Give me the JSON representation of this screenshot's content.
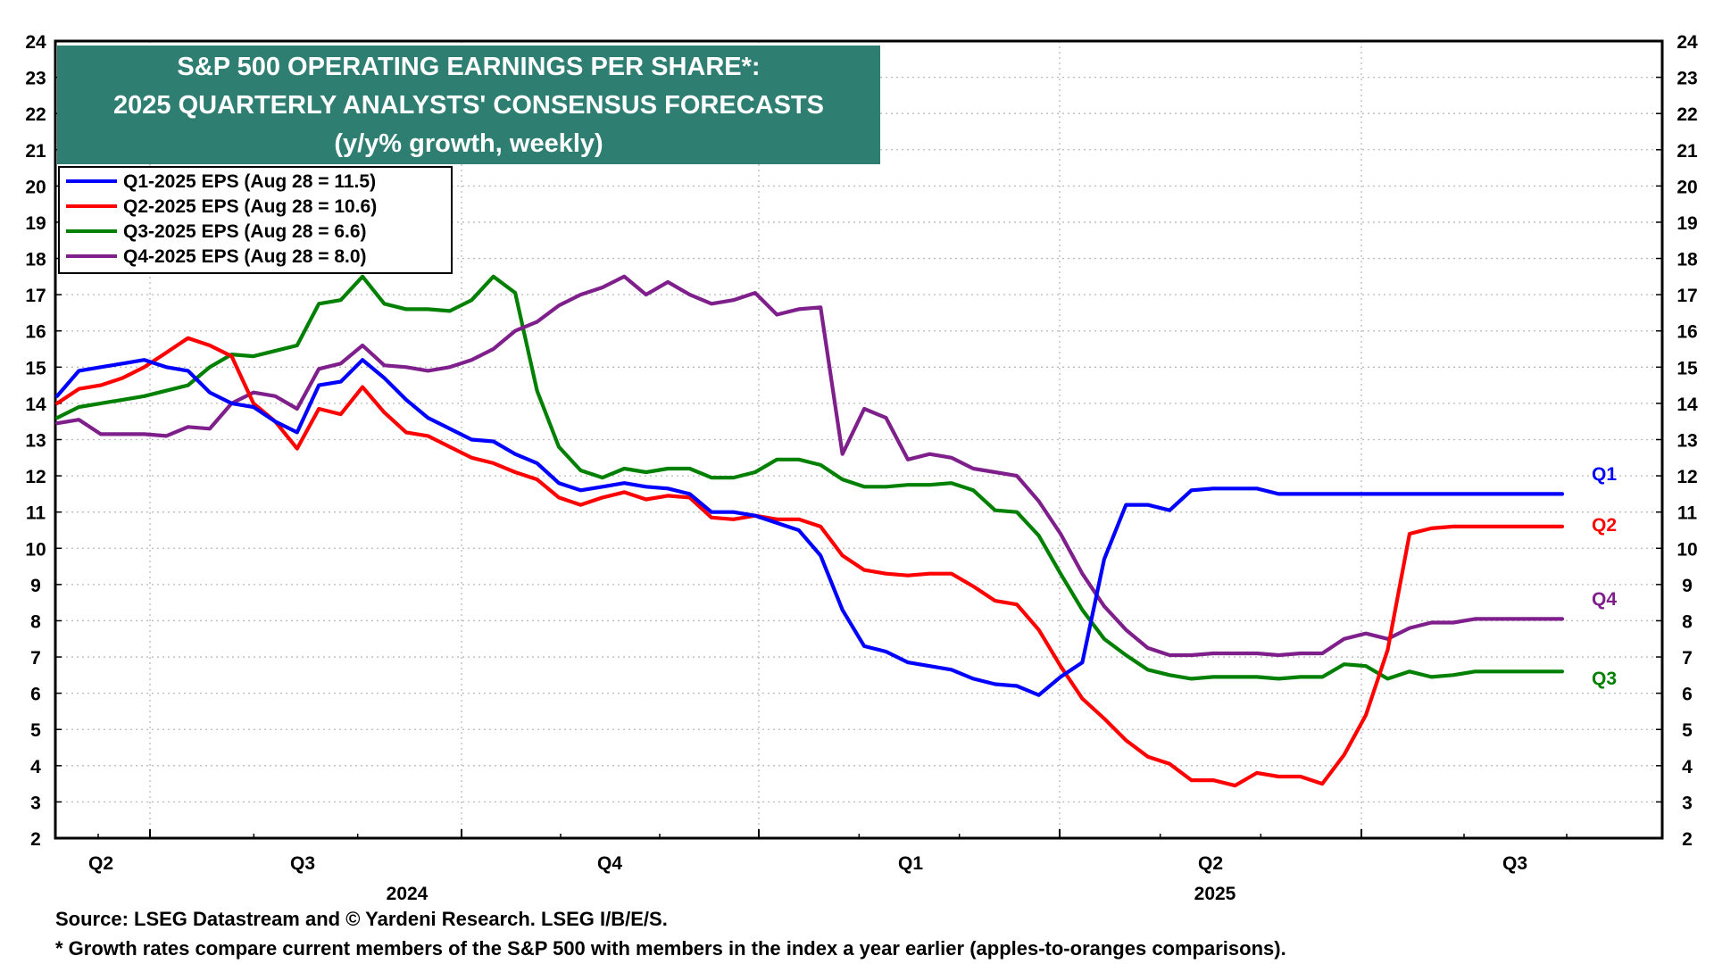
{
  "chart_data": {
    "type": "line",
    "title_lines": [
      "S&P 500 OPERATING EARNINGS PER SHARE*:",
      "2025 QUARTERLY ANALYSTS' CONSENSUS FORECASTS",
      "(y/y% growth, weekly)"
    ],
    "ylim": [
      2,
      24
    ],
    "y_ticks": [
      2,
      3,
      4,
      5,
      6,
      7,
      8,
      9,
      10,
      11,
      12,
      13,
      14,
      15,
      16,
      17,
      18,
      19,
      20,
      21,
      22,
      23,
      24
    ],
    "x_quarter_labels": [
      "Q2",
      "Q3",
      "Q4",
      "Q1",
      "Q2",
      "Q3"
    ],
    "x_year_labels": [
      "2024",
      "2025"
    ],
    "grid": true,
    "legend_position": "top-left",
    "series": [
      {
        "name": "Q1-2025 EPS (Aug 28 = 11.5)",
        "end_label": "Q1",
        "color": "#0000ff",
        "values": [
          14.2,
          14.9,
          15.0,
          15.1,
          15.2,
          15.0,
          14.9,
          14.3,
          14.0,
          13.9,
          13.5,
          13.2,
          14.5,
          14.6,
          15.2,
          14.7,
          14.1,
          13.6,
          13.3,
          13.0,
          12.95,
          12.6,
          12.35,
          11.8,
          11.6,
          11.7,
          11.8,
          11.7,
          11.65,
          11.5,
          11.0,
          11.0,
          10.9,
          10.7,
          10.5,
          9.8,
          8.3,
          7.3,
          7.15,
          6.85,
          6.75,
          6.65,
          6.4,
          6.25,
          6.2,
          5.95,
          6.45,
          6.85,
          9.7,
          11.2,
          11.2,
          11.05,
          11.6,
          11.65,
          11.65,
          11.65,
          11.5,
          11.5,
          11.5,
          11.5,
          11.5,
          11.5,
          11.5,
          11.5,
          11.5,
          11.5,
          11.5,
          11.5,
          11.5,
          11.5
        ]
      },
      {
        "name": "Q2-2025 EPS (Aug 28 = 10.6)",
        "end_label": "Q2",
        "color": "#ff0000",
        "values": [
          14.0,
          14.4,
          14.5,
          14.7,
          15.0,
          15.4,
          15.8,
          15.6,
          15.3,
          14.0,
          13.5,
          12.75,
          13.85,
          13.7,
          14.45,
          13.75,
          13.2,
          13.1,
          12.8,
          12.5,
          12.35,
          12.1,
          11.9,
          11.4,
          11.2,
          11.4,
          11.55,
          11.35,
          11.45,
          11.4,
          10.85,
          10.8,
          10.9,
          10.8,
          10.8,
          10.6,
          9.8,
          9.4,
          9.3,
          9.25,
          9.3,
          9.3,
          8.95,
          8.55,
          8.45,
          7.75,
          6.75,
          5.85,
          5.3,
          4.7,
          4.25,
          4.05,
          3.6,
          3.6,
          3.45,
          3.8,
          3.7,
          3.7,
          3.5,
          4.3,
          5.4,
          7.2,
          10.4,
          10.55,
          10.6,
          10.6,
          10.6,
          10.6,
          10.6,
          10.6
        ]
      },
      {
        "name": "Q3-2025 EPS (Aug 28 = 6.6)",
        "end_label": "Q3",
        "color": "#008000",
        "values": [
          13.6,
          13.9,
          14.0,
          14.1,
          14.2,
          14.35,
          14.5,
          15.0,
          15.35,
          15.3,
          15.45,
          15.6,
          16.75,
          16.85,
          17.5,
          16.75,
          16.6,
          16.6,
          16.55,
          16.85,
          17.5,
          17.05,
          14.35,
          12.8,
          12.15,
          11.95,
          12.2,
          12.1,
          12.2,
          12.2,
          11.95,
          11.95,
          12.1,
          12.45,
          12.45,
          12.3,
          11.9,
          11.7,
          11.7,
          11.75,
          11.75,
          11.8,
          11.6,
          11.05,
          11.0,
          10.35,
          9.3,
          8.3,
          7.5,
          7.05,
          6.65,
          6.5,
          6.4,
          6.45,
          6.45,
          6.45,
          6.4,
          6.45,
          6.45,
          6.8,
          6.75,
          6.4,
          6.6,
          6.45,
          6.5,
          6.6,
          6.6,
          6.6,
          6.6,
          6.6
        ]
      },
      {
        "name": "Q4-2025 EPS (Aug 28 = 8.0)",
        "end_label": "Q4",
        "color": "#7f1f8c",
        "values": [
          13.45,
          13.55,
          13.15,
          13.15,
          13.15,
          13.1,
          13.35,
          13.3,
          14.0,
          14.3,
          14.2,
          13.85,
          14.95,
          15.1,
          15.6,
          15.05,
          15.0,
          14.9,
          15.0,
          15.2,
          15.5,
          16.0,
          16.25,
          16.7,
          17.0,
          17.2,
          17.5,
          17.0,
          17.35,
          17.0,
          16.75,
          16.85,
          17.05,
          16.45,
          16.6,
          16.65,
          12.6,
          13.85,
          13.6,
          12.45,
          12.6,
          12.5,
          12.2,
          12.1,
          12.0,
          11.3,
          10.4,
          9.3,
          8.4,
          7.75,
          7.25,
          7.05,
          7.05,
          7.1,
          7.1,
          7.1,
          7.05,
          7.1,
          7.1,
          7.5,
          7.65,
          7.5,
          7.8,
          7.95,
          7.95,
          8.05,
          8.05,
          8.05,
          8.05,
          8.05
        ]
      }
    ]
  },
  "source_text": "Source: LSEG Datastream and © Yardeni Research. LSEG I/B/E/S.",
  "footnote_text": "* Growth rates compare current members of the S&P 500 with members in the index a year earlier (apples-to-oranges comparisons)."
}
